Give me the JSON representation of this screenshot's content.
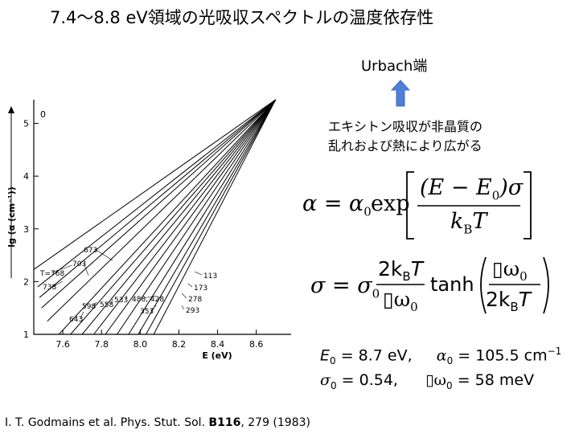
{
  "slide": {
    "title": "7.4～8.8 eV領域の光吸収スペクトルの温度依存性",
    "urbach_label": "Urbach端",
    "note": "エキシトン吸収が非晶質の\n乱れおよび熱により広がる",
    "citation_pre": "I. T. Godmains et al. Phys. Stut. Sol. ",
    "citation_vol": "B116",
    "citation_post": ", 279 (1983)",
    "arrow_color": "#4f7fd6"
  },
  "formulas": {
    "urbach": {
      "lhs": "α = α",
      "lhs_sub": "0",
      "exp": "exp",
      "num_a": "(E − E",
      "num_sub": "0",
      "num_b": ")σ",
      "den": "k",
      "den_sub": "B",
      "den_b": "T"
    },
    "sigma": {
      "lhs": "σ = σ",
      "lhs_sub": "0",
      "num": "2k",
      "num_sub": "B",
      "num_b": "T",
      "den": "▯ω",
      "den_sub": "0",
      "func": "tanh",
      "arg_num": "▯ω",
      "arg_num_sub": "0",
      "arg_den": "2k",
      "arg_den_sub": "B",
      "arg_den_b": "T"
    },
    "params_line1": {
      "a": "E",
      "a_sub": "0",
      "a_val": " = 8.7 eV,",
      "b": "α",
      "b_sub": "0",
      "b_val": " = 105.5 cm",
      "b_sup": "−1"
    },
    "params_line2": {
      "a": "σ",
      "a_sub": "0",
      "a_val": " = 0.54,",
      "b": "▯ω",
      "b_sub": "0",
      "b_val": " = 58 meV"
    }
  },
  "chart_data": {
    "type": "line",
    "xlabel": "E (eV)",
    "ylabel": "lg (α (cm⁻¹))",
    "panel_label": "0",
    "xlim": [
      7.45,
      8.78
    ],
    "ylim": [
      1.0,
      5.45
    ],
    "x_ticks": [
      7.6,
      7.8,
      8.0,
      8.2,
      8.4,
      8.6
    ],
    "x_tick_labels": [
      "7.6",
      "7.8",
      "8.0",
      "8.2",
      "8.4",
      "8.6"
    ],
    "y_ticks": [
      1,
      2,
      3,
      4,
      5
    ],
    "y_tick_labels": [
      "1",
      "2",
      "3",
      "4",
      "5"
    ],
    "focus": [
      8.7,
      5.45
    ],
    "series": [
      {
        "name": "T=768",
        "values": [
          [
            7.45,
            2.23
          ],
          [
            8.7,
            5.45
          ]
        ]
      },
      {
        "name": "738",
        "values": [
          [
            7.47,
            1.9
          ],
          [
            8.7,
            5.45
          ]
        ]
      },
      {
        "name": "703",
        "values": [
          [
            7.48,
            1.7
          ],
          [
            8.7,
            5.45
          ]
        ]
      },
      {
        "name": "673",
        "values": [
          [
            7.49,
            1.5
          ],
          [
            8.7,
            5.45
          ]
        ]
      },
      {
        "name": "643",
        "values": [
          [
            7.52,
            1.25
          ],
          [
            8.7,
            5.45
          ]
        ]
      },
      {
        "name": "598",
        "values": [
          [
            7.58,
            1.0
          ],
          [
            8.7,
            5.45
          ]
        ]
      },
      {
        "name": "558",
        "values": [
          [
            7.64,
            1.0
          ],
          [
            8.7,
            5.45
          ]
        ]
      },
      {
        "name": "533",
        "values": [
          [
            7.7,
            1.0
          ],
          [
            8.7,
            5.45
          ]
        ]
      },
      {
        "name": "488",
        "values": [
          [
            7.76,
            1.0
          ],
          [
            8.7,
            5.45
          ]
        ]
      },
      {
        "name": "428",
        "values": [
          [
            7.82,
            1.0
          ],
          [
            8.7,
            5.45
          ]
        ]
      },
      {
        "name": "353",
        "values": [
          [
            7.88,
            1.0
          ],
          [
            8.7,
            5.45
          ]
        ]
      },
      {
        "name": "293",
        "values": [
          [
            7.94,
            1.0
          ],
          [
            8.7,
            5.45
          ]
        ]
      },
      {
        "name": "278",
        "values": [
          [
            7.99,
            1.0
          ],
          [
            8.7,
            5.45
          ]
        ]
      },
      {
        "name": "173",
        "values": [
          [
            8.03,
            1.0
          ],
          [
            8.7,
            5.45
          ]
        ]
      },
      {
        "name": "113",
        "values": [
          [
            8.07,
            1.0
          ],
          [
            8.7,
            5.45
          ]
        ]
      }
    ],
    "annotations": [
      "T=768",
      "738",
      "703",
      "673",
      "643",
      "598",
      "558",
      "533",
      "488, 428",
      "353",
      "293",
      "278",
      "173",
      "113"
    ],
    "grid": false
  }
}
